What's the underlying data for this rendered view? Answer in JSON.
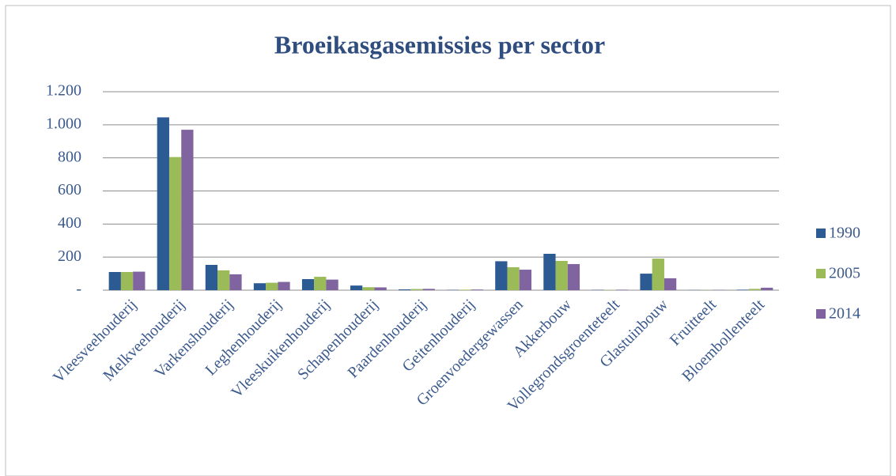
{
  "chart_data": {
    "type": "bar",
    "title": "Broeikasgasemissies per sector",
    "categories": [
      "Vleesveehouderij",
      "Melkveehouderij",
      "Varkenshouderij",
      "Leghenhouderij",
      "Vleeskuikenhouderij",
      "Schapenhouderij",
      "Paardenhouderij",
      "Geitenhouderij",
      "Groenvoedergewassen",
      "Akkerbouw",
      "Vollegrondsgroenteteelt",
      "Glastuinbouw",
      "Fruitteelt",
      "Bloembollenteelt"
    ],
    "series": [
      {
        "name": "1990",
        "color": "#2c5a93",
        "values": [
          110,
          1045,
          153,
          42,
          67,
          28,
          5,
          2,
          175,
          220,
          2,
          100,
          1,
          3
        ]
      },
      {
        "name": "2005",
        "color": "#9bbb59",
        "values": [
          110,
          805,
          120,
          45,
          81,
          18,
          7,
          3,
          139,
          177,
          2,
          191,
          1,
          8
        ]
      },
      {
        "name": "2014",
        "color": "#7f64a0",
        "values": [
          112,
          970,
          96,
          50,
          64,
          17,
          8,
          4,
          124,
          158,
          3,
          72,
          2,
          15
        ]
      }
    ],
    "ylim": [
      0,
      1200
    ],
    "yticks": [
      {
        "value": 0,
        "label": "-"
      },
      200,
      400,
      600,
      800,
      {
        "value": 1000,
        "label": "1.000"
      },
      {
        "value": 1200,
        "label": "1.200"
      }
    ],
    "grid": true,
    "legend": "right"
  }
}
